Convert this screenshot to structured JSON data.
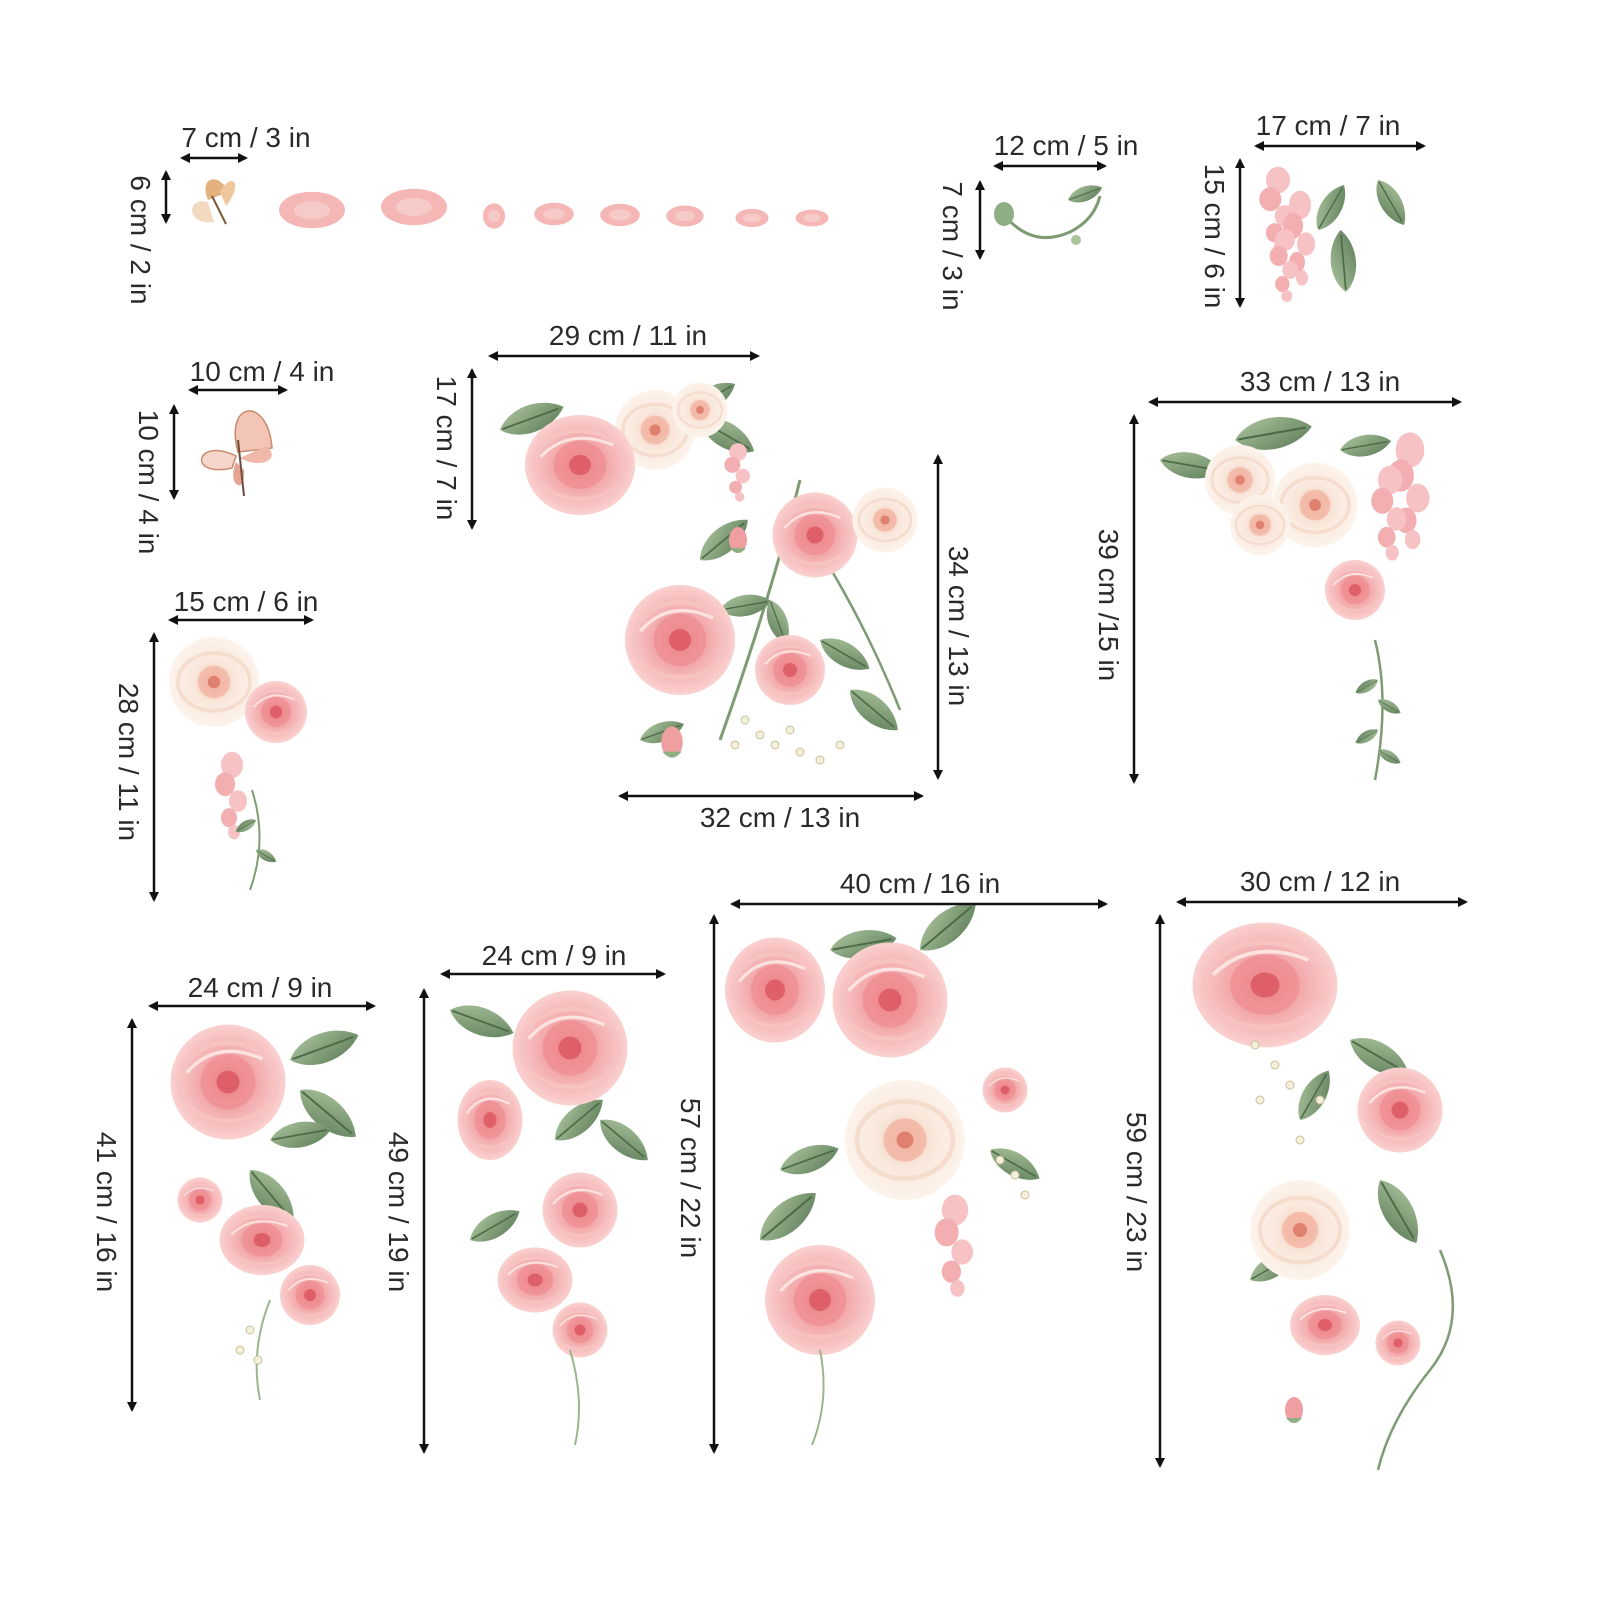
{
  "accent_colors": {
    "petal": "#f2a7a9",
    "petal_deep": "#e77f85",
    "cream": "#f8eee4",
    "leaf": "#8fae86",
    "leaf_dark": "#5f7d5a",
    "line": "#111111",
    "text": "#2a2a2a"
  },
  "labels": {
    "petals_width": "7 cm / 3 in",
    "petals_height": "6 cm / 2 in",
    "sprig_width": "12 cm / 5 in",
    "sprig_height": "7 cm / 3 in",
    "wisteria_width": "17 cm / 7 in",
    "wisteria_height": "15 cm / 6 in",
    "butterfly_width": "10 cm / 4 in",
    "butterfly_height": "10 cm / 4 in",
    "topbouquet_width": "29 cm / 11 in",
    "topbouquet_height": "17 cm / 7 in",
    "centerbouquet_height": "34 cm / 13 in",
    "centerbouquet_width": "32 cm / 13 in",
    "corner_width": "33 cm / 13 in",
    "corner_height": "39 cm /15 in",
    "small_width": "15 cm / 6 in",
    "small_height": "28 cm / 11 in",
    "a_width": "24 cm / 9 in",
    "a_height": "41 cm / 16 in",
    "b_width": "24 cm / 9 in",
    "b_height": "49 cm / 19 in",
    "c_width": "40 cm / 16 in",
    "c_height": "57 cm / 22 in",
    "d_width": "30 cm / 12 in",
    "d_height": "59 cm / 23 in"
  }
}
